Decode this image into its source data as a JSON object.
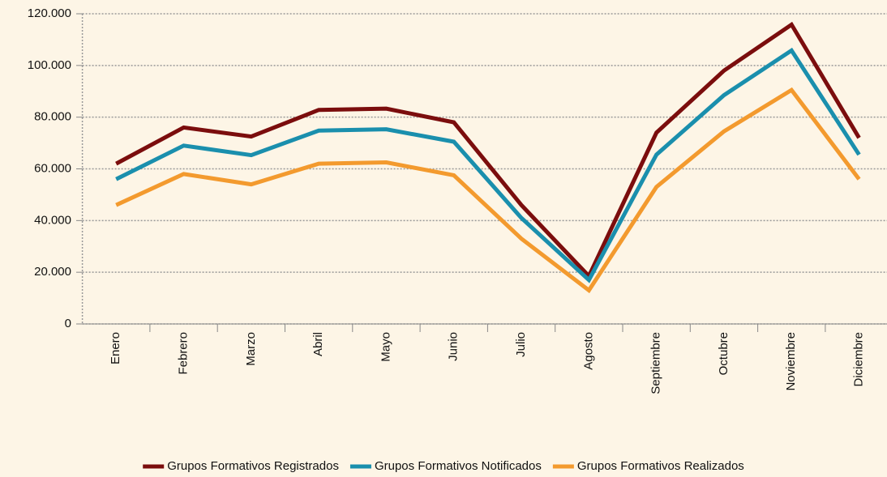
{
  "chart_data": {
    "type": "line",
    "categories": [
      "Enero",
      "Febrero",
      "Marzo",
      "Abril",
      "Mayo",
      "Junio",
      "Julio",
      "Agosto",
      "Septiembre",
      "Octubre",
      "Noviembre",
      "Diciembre"
    ],
    "series": [
      {
        "name": "Grupos Formativos Registrados",
        "color": "#7b0d0d",
        "values": [
          62000,
          76000,
          72500,
          82800,
          83300,
          78000,
          46000,
          18500,
          74000,
          98000,
          115800,
          72000
        ]
      },
      {
        "name": "Grupos Formativos Notificados",
        "color": "#1a8fad",
        "values": [
          56000,
          69000,
          65300,
          74800,
          75300,
          70500,
          41000,
          17000,
          65500,
          88500,
          105800,
          65500
        ]
      },
      {
        "name": "Grupos Formativos Realizados",
        "color": "#f39a2e",
        "values": [
          46000,
          58000,
          54000,
          62000,
          62500,
          57500,
          33000,
          13000,
          53000,
          74500,
          90500,
          56000
        ]
      }
    ],
    "ylim": [
      0,
      120000
    ],
    "yticks": [
      0,
      {
        "value": 20000,
        "label": "20.000"
      },
      {
        "value": 40000,
        "label": "40.000"
      },
      {
        "value": 60000,
        "label": "60.000"
      },
      {
        "value": 80000,
        "label": "80.000"
      },
      {
        "value": 100000,
        "label": "100.000"
      },
      {
        "value": 120000,
        "label": "120.000"
      }
    ],
    "grid": true,
    "legend": "bottom"
  }
}
